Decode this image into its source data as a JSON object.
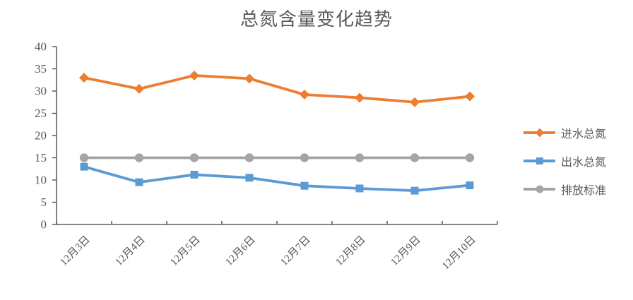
{
  "chart_data": {
    "type": "line",
    "title": "总氮含量变化趋势",
    "xlabel": "",
    "ylabel": "",
    "categories": [
      "12月3日",
      "12月4日",
      "12月5日",
      "12月6日",
      "12月7日",
      "12月8日",
      "12月9日",
      "12月10日"
    ],
    "series": [
      {
        "key": "influent-total-nitrogen",
        "name": "进水总氮",
        "marker": "diamond",
        "color": "#ED7D31",
        "values": [
          33,
          30.5,
          33.5,
          32.8,
          29.2,
          28.5,
          27.5,
          28.8
        ]
      },
      {
        "key": "effluent-total-nitrogen",
        "name": "出水总氮",
        "marker": "square",
        "color": "#5B9BD5",
        "values": [
          13,
          9.5,
          11.2,
          10.5,
          8.7,
          8.1,
          7.6,
          8.8
        ]
      },
      {
        "key": "discharge-standard",
        "name": "排放标准",
        "marker": "circle",
        "color": "#A5A5A5",
        "values": [
          15,
          15,
          15,
          15,
          15,
          15,
          15,
          15
        ]
      }
    ],
    "ylim": [
      0,
      40
    ],
    "yticks": [
      0,
      5,
      10,
      15,
      20,
      25,
      30,
      35,
      40
    ],
    "grid": false,
    "legend_position": "right",
    "axis_color": "#404040",
    "text_color": "#595959"
  }
}
